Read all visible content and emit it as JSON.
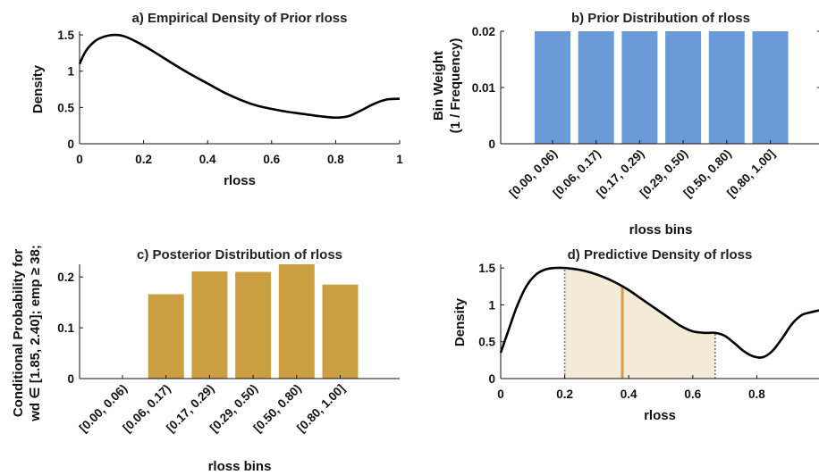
{
  "colors": {
    "prior_bar": "#6a9ad8",
    "posterior_bar": "#cc9e42",
    "fill": "#f4ead8",
    "line": "#000000",
    "marker": "#d4a04d",
    "dotted": "#777777"
  },
  "chart_data": [
    {
      "id": "a",
      "type": "line",
      "title": "a) Empirical Density of Prior rloss",
      "xlabel": "rloss",
      "ylabel": "Density",
      "xlim": [
        0,
        1
      ],
      "ylim": [
        0,
        1.55
      ],
      "xticks": [
        0,
        0.2,
        0.4,
        0.6,
        0.8,
        1
      ],
      "xtick_labels": [
        "0",
        "0.2",
        "0.4",
        "0.6",
        "0.8",
        "1"
      ],
      "yticks": [
        0,
        0.5,
        1,
        1.5
      ],
      "ytick_labels": [
        "0",
        "0.5",
        "1",
        "1.5"
      ],
      "x": [
        0,
        0.02,
        0.05,
        0.08,
        0.11,
        0.14,
        0.18,
        0.22,
        0.26,
        0.3,
        0.35,
        0.4,
        0.45,
        0.5,
        0.55,
        0.6,
        0.65,
        0.7,
        0.75,
        0.8,
        0.84,
        0.88,
        0.92,
        0.96,
        1.0
      ],
      "y": [
        1.1,
        1.28,
        1.42,
        1.48,
        1.5,
        1.48,
        1.4,
        1.3,
        1.19,
        1.08,
        0.95,
        0.83,
        0.71,
        0.61,
        0.53,
        0.48,
        0.44,
        0.41,
        0.38,
        0.36,
        0.38,
        0.46,
        0.55,
        0.61,
        0.62
      ]
    },
    {
      "id": "b",
      "type": "bar",
      "title": "b) Prior Distribution of rloss",
      "xlabel": "rloss bins",
      "ylabel": "Bin Weight",
      "ylabel2": "(1 / Frequency)",
      "ylim": [
        0,
        0.02
      ],
      "yticks": [
        0,
        0.01,
        0.02
      ],
      "ytick_labels": [
        "0",
        "0.01",
        "0.02"
      ],
      "categories": [
        "[0.00, 0.06)",
        "[0.06, 0.17)",
        "[0.17, 0.29)",
        "[0.29, 0.50)",
        "[0.50, 0.80)",
        "[0.80, 1.00]"
      ],
      "values": [
        0.02,
        0.02,
        0.02,
        0.02,
        0.02,
        0.02
      ]
    },
    {
      "id": "c",
      "type": "bar",
      "title": "c) Posterior Distribution of rloss",
      "xlabel": "rloss bins",
      "ylabel": "Conditional Probability for",
      "ylabel2": "wd ∈ [1.85, 2.40]; emp ≥ 38;",
      "ylim": [
        0,
        0.225
      ],
      "yticks": [
        0,
        0.1,
        0.2
      ],
      "ytick_labels": [
        "0",
        "0.1",
        "0.2"
      ],
      "categories": [
        "[0.00, 0.06)",
        "[0.06, 0.17)",
        "[0.17, 0.29)",
        "[0.29, 0.50)",
        "[0.50, 0.80)",
        "[0.80, 1.00]"
      ],
      "values": [
        0,
        0.166,
        0.211,
        0.21,
        0.225,
        0.185
      ]
    },
    {
      "id": "d",
      "type": "area",
      "title": "d) Predictive Density of rloss",
      "xlabel": "rloss",
      "ylabel": "Density",
      "xlim": [
        0,
        1
      ],
      "ylim": [
        0,
        1.55
      ],
      "xticks": [
        0,
        0.2,
        0.4,
        0.6,
        0.8
      ],
      "xtick_labels": [
        "0",
        "0.2",
        "0.4",
        "0.6",
        "0.8"
      ],
      "yticks": [
        0,
        0.5,
        1,
        1.5
      ],
      "ytick_labels": [
        "0",
        "0.5",
        "1",
        "1.5"
      ],
      "x": [
        0,
        0.02,
        0.05,
        0.08,
        0.11,
        0.14,
        0.17,
        0.2,
        0.24,
        0.28,
        0.32,
        0.36,
        0.4,
        0.44,
        0.48,
        0.52,
        0.56,
        0.6,
        0.64,
        0.67,
        0.7,
        0.73,
        0.76,
        0.79,
        0.82,
        0.85,
        0.88,
        0.91,
        0.94,
        0.97,
        1.0
      ],
      "y": [
        0.35,
        0.6,
        0.97,
        1.25,
        1.41,
        1.48,
        1.5,
        1.5,
        1.48,
        1.44,
        1.38,
        1.3,
        1.2,
        1.08,
        0.96,
        0.84,
        0.72,
        0.64,
        0.62,
        0.62,
        0.58,
        0.48,
        0.37,
        0.3,
        0.29,
        0.38,
        0.55,
        0.74,
        0.86,
        0.9,
        0.93
      ],
      "shade_range": [
        0.2,
        0.67
      ],
      "marker_x": 0.38
    }
  ]
}
